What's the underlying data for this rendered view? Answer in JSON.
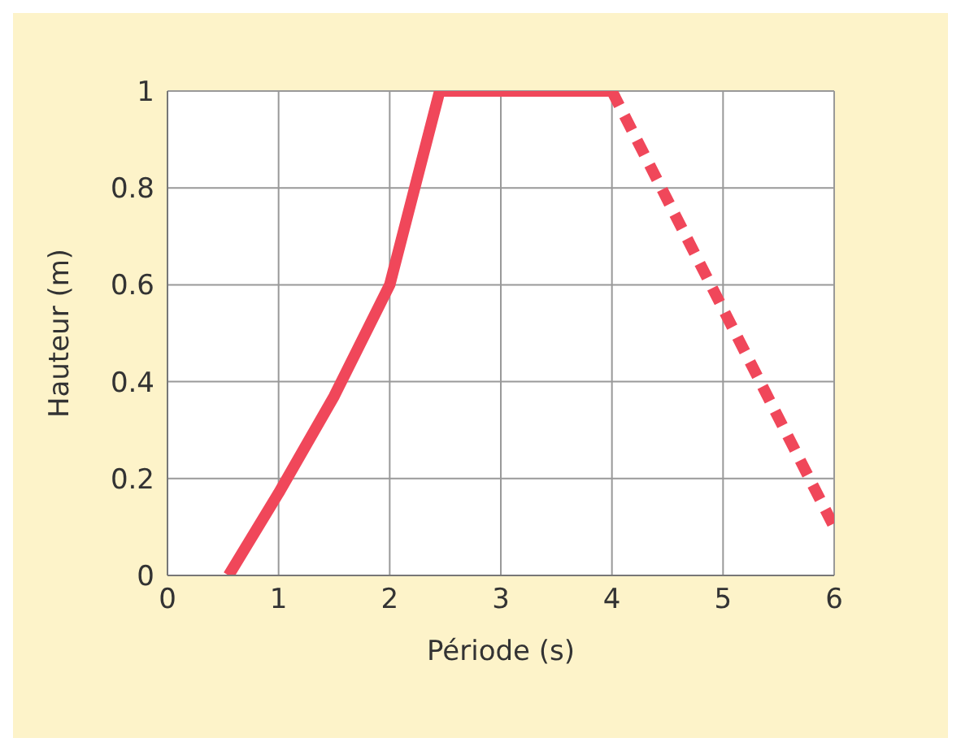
{
  "chart_data": {
    "type": "line",
    "xlabel": "Période (s)",
    "ylabel": "Hauteur (m)",
    "series": [
      {
        "color": "#f0475a",
        "line_style": "solid",
        "x": [
          0.55,
          1,
          1.5,
          2,
          2.45,
          4
        ],
        "values": [
          0,
          0.17,
          0.37,
          0.6,
          1,
          1
        ]
      },
      {
        "color": "#f0475a",
        "line_style": "dashed",
        "x": [
          4,
          6
        ],
        "values": [
          1,
          0.1
        ]
      }
    ],
    "xlim": [
      0,
      6
    ],
    "xticks": [
      0,
      1,
      2,
      3,
      4,
      5,
      6
    ],
    "ylim": [
      0,
      1
    ],
    "yticks": [
      0,
      0.2,
      0.4,
      0.6,
      0.8,
      1
    ],
    "grid": true,
    "marker": "none"
  }
}
